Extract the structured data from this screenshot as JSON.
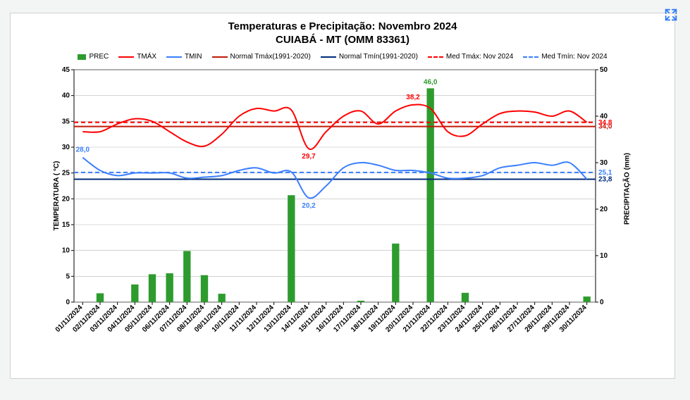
{
  "title_line1": "Temperaturas e Precipitação: Novembro 2024",
  "title_line2": "CUIABÁ - MT (OMM 83361)",
  "expand_icon_color": "#2f7df6",
  "legend": [
    {
      "type": "box",
      "color": "#2e9b2e",
      "label": "PREC"
    },
    {
      "type": "line",
      "style": "solid",
      "color": "#ff0000",
      "label": "TMÁX"
    },
    {
      "type": "line",
      "style": "solid",
      "color": "#3a7fff",
      "label": "TMIN"
    },
    {
      "type": "line",
      "style": "solid",
      "color": "#c21807",
      "label": "Normal Tmáx(1991-2020)"
    },
    {
      "type": "line",
      "style": "solid",
      "color": "#002b7a",
      "label": "Normal Tmín(1991-2020)"
    },
    {
      "type": "line",
      "style": "dash",
      "color": "#ff0000",
      "label": "Med Tmáx: Nov 2024"
    },
    {
      "type": "line",
      "style": "dash",
      "color": "#3a7fff",
      "label": "Med Tmín: Nov 2024"
    }
  ],
  "chart": {
    "type": "combo-bar-line",
    "background_color": "#ffffff",
    "grid_color": "#b8b8b8",
    "axis_color": "#000000",
    "tick_font_size": 10,
    "label_font_size": 10,
    "x_categories": [
      "01/11/2024",
      "02/11/2024",
      "03/11/2024",
      "04/11/2024",
      "05/11/2024",
      "06/11/2024",
      "07/11/2024",
      "08/11/2024",
      "09/11/2024",
      "10/11/2024",
      "11/11/2024",
      "12/11/2024",
      "13/11/2024",
      "14/11/2024",
      "15/11/2024",
      "16/11/2024",
      "17/11/2024",
      "18/11/2024",
      "19/11/2024",
      "20/11/2024",
      "21/11/2024",
      "22/11/2024",
      "23/11/2024",
      "24/11/2024",
      "25/11/2024",
      "26/11/2024",
      "27/11/2024",
      "28/11/2024",
      "29/11/2024",
      "30/11/2024"
    ],
    "left_axis": {
      "label": "TEMPERATURA ( °C)",
      "min": 0,
      "max": 45,
      "step": 5,
      "color": "#000000"
    },
    "right_axis": {
      "label": "PRECIPITAÇÃO (mm)",
      "min": 0,
      "max": 50,
      "step": 10,
      "color": "#000000"
    },
    "bars": {
      "color": "#2e9b2e",
      "axis": "right",
      "width_fraction": 0.42,
      "values": [
        0,
        1.9,
        0,
        3.8,
        6.0,
        6.2,
        11.0,
        5.8,
        1.8,
        0,
        0,
        0,
        23.0,
        0,
        0,
        0,
        0.3,
        0,
        12.6,
        0,
        46.0,
        0,
        2.0,
        0,
        0,
        0,
        0,
        0,
        0,
        1.2
      ]
    },
    "lines": {
      "tmax": {
        "color": "#ff0000",
        "width": 2,
        "axis": "left",
        "values": [
          33.0,
          33.0,
          34.5,
          35.5,
          35.0,
          33.0,
          31.0,
          30.2,
          32.5,
          36.0,
          37.5,
          37.0,
          37.2,
          29.7,
          33.0,
          36.0,
          37.0,
          34.5,
          37.0,
          38.2,
          37.5,
          33.0,
          32.2,
          34.5,
          36.5,
          37.0,
          36.8,
          36.0,
          37.0,
          34.8
        ]
      },
      "tmin": {
        "color": "#3a7fff",
        "width": 2,
        "axis": "left",
        "values": [
          28.0,
          25.5,
          24.5,
          25.0,
          25.0,
          25.0,
          24.0,
          24.2,
          24.5,
          25.5,
          26.0,
          25.0,
          25.2,
          20.2,
          22.5,
          26.0,
          27.0,
          26.5,
          25.5,
          25.5,
          25.0,
          24.0,
          24.0,
          24.5,
          26.0,
          26.5,
          27.0,
          26.5,
          27.0,
          23.8
        ]
      }
    },
    "hlines": [
      {
        "name": "normal_tmax",
        "value": 34.0,
        "color": "#c21807",
        "width": 2,
        "style": "solid",
        "axis": "left",
        "label": "34,0",
        "label_side": "right"
      },
      {
        "name": "normal_tmin",
        "value": 23.8,
        "color": "#002b7a",
        "width": 2,
        "style": "solid",
        "axis": "left",
        "label": "23,8",
        "label_side": "right"
      },
      {
        "name": "med_tmax",
        "value": 34.8,
        "color": "#ff0000",
        "width": 2,
        "style": "dash",
        "axis": "left",
        "label": "34,8",
        "label_side": "right"
      },
      {
        "name": "med_tmin",
        "value": 25.1,
        "color": "#3a7fff",
        "width": 2,
        "style": "dash",
        "axis": "left",
        "label": "25,1",
        "label_side": "right"
      }
    ],
    "point_annotations": [
      {
        "series": "tmax",
        "index": 13,
        "text": "29,7",
        "color": "#ff0000",
        "dy": 14
      },
      {
        "series": "tmax",
        "index": 19,
        "text": "38,2",
        "color": "#ff0000",
        "dy": -8
      },
      {
        "series": "tmin",
        "index": 0,
        "text": "28,0",
        "color": "#3a7fff",
        "dy": -8
      },
      {
        "series": "tmin",
        "index": 13,
        "text": "20,2",
        "color": "#3a7fff",
        "dy": 14
      },
      {
        "series": "bars",
        "index": 20,
        "text": "46,0",
        "color": "#2e9b2e",
        "dy": -6
      }
    ]
  }
}
